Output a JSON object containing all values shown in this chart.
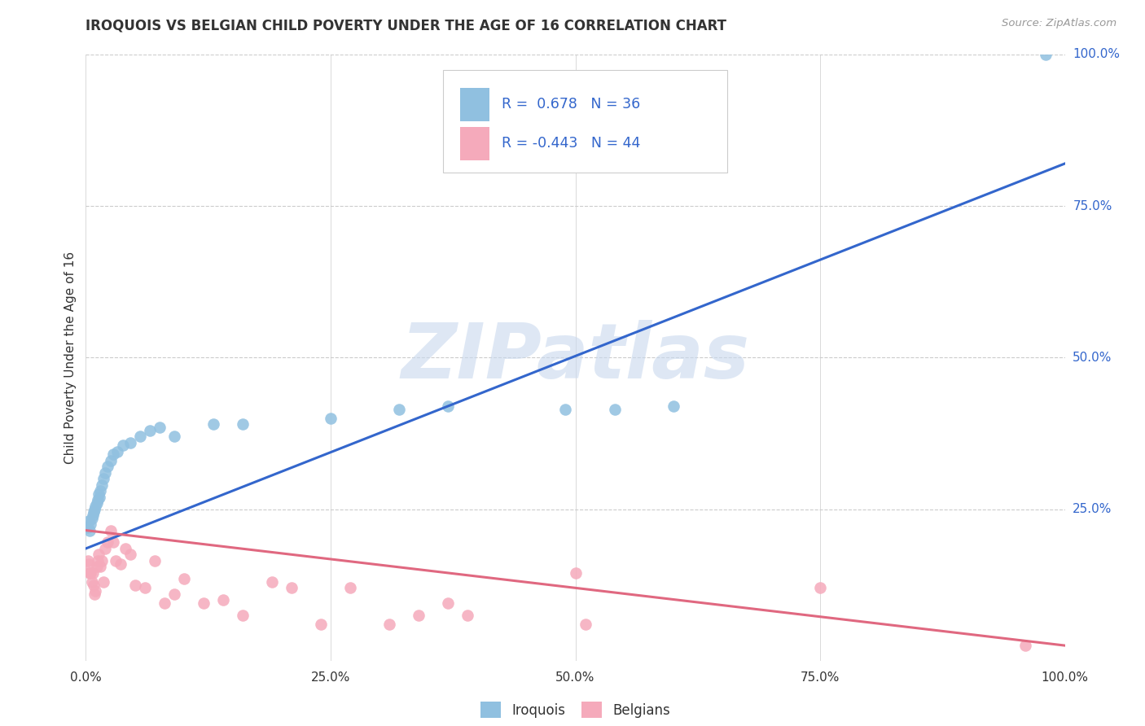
{
  "title": "IROQUOIS VS BELGIAN CHILD POVERTY UNDER THE AGE OF 16 CORRELATION CHART",
  "source": "Source: ZipAtlas.com",
  "ylabel": "Child Poverty Under the Age of 16",
  "xlim": [
    0.0,
    1.0
  ],
  "ylim": [
    0.0,
    1.0
  ],
  "xticks": [
    0.0,
    0.25,
    0.5,
    0.75,
    1.0
  ],
  "xticklabels": [
    "0.0%",
    "25.0%",
    "50.0%",
    "75.0%",
    "100.0%"
  ],
  "ytick_positions": [
    0.25,
    0.5,
    0.75,
    1.0
  ],
  "ytick_labels_right": [
    "25.0%",
    "50.0%",
    "75.0%",
    "100.0%"
  ],
  "watermark": "ZIPatlas",
  "legend_iroquois_label": "R =  0.678   N = 36",
  "legend_belgians_label": "R = -0.443   N = 44",
  "iroquois_color": "#90C0E0",
  "belgians_color": "#F5AABB",
  "iroquois_line_color": "#3366CC",
  "belgians_line_color": "#E06880",
  "background_color": "#FFFFFF",
  "iroquois_x": [
    0.002,
    0.003,
    0.004,
    0.005,
    0.006,
    0.007,
    0.008,
    0.009,
    0.01,
    0.011,
    0.012,
    0.013,
    0.014,
    0.015,
    0.016,
    0.018,
    0.02,
    0.022,
    0.025,
    0.028,
    0.032,
    0.038,
    0.045,
    0.055,
    0.065,
    0.075,
    0.09,
    0.13,
    0.16,
    0.25,
    0.32,
    0.37,
    0.49,
    0.54,
    0.6,
    0.98
  ],
  "iroquois_y": [
    0.22,
    0.23,
    0.215,
    0.225,
    0.235,
    0.24,
    0.245,
    0.25,
    0.255,
    0.26,
    0.265,
    0.275,
    0.27,
    0.28,
    0.29,
    0.3,
    0.31,
    0.32,
    0.33,
    0.34,
    0.345,
    0.355,
    0.36,
    0.37,
    0.38,
    0.385,
    0.37,
    0.39,
    0.39,
    0.4,
    0.415,
    0.42,
    0.415,
    0.415,
    0.42,
    1.0
  ],
  "belgians_x": [
    0.002,
    0.003,
    0.004,
    0.005,
    0.006,
    0.007,
    0.008,
    0.009,
    0.01,
    0.011,
    0.012,
    0.013,
    0.015,
    0.016,
    0.018,
    0.02,
    0.022,
    0.025,
    0.028,
    0.03,
    0.035,
    0.04,
    0.045,
    0.05,
    0.06,
    0.07,
    0.08,
    0.09,
    0.1,
    0.12,
    0.14,
    0.16,
    0.19,
    0.21,
    0.24,
    0.27,
    0.31,
    0.34,
    0.37,
    0.39,
    0.5,
    0.51,
    0.75,
    0.96
  ],
  "belgians_y": [
    0.165,
    0.16,
    0.145,
    0.145,
    0.13,
    0.145,
    0.125,
    0.11,
    0.115,
    0.155,
    0.165,
    0.175,
    0.155,
    0.165,
    0.13,
    0.185,
    0.195,
    0.215,
    0.195,
    0.165,
    0.16,
    0.185,
    0.175,
    0.125,
    0.12,
    0.165,
    0.095,
    0.11,
    0.135,
    0.095,
    0.1,
    0.075,
    0.13,
    0.12,
    0.06,
    0.12,
    0.06,
    0.075,
    0.095,
    0.075,
    0.145,
    0.06,
    0.12,
    0.025
  ],
  "iroquois_trend_x": [
    0.0,
    1.0
  ],
  "iroquois_trend_y": [
    0.185,
    0.82
  ],
  "belgians_trend_x": [
    0.0,
    1.0
  ],
  "belgians_trend_y": [
    0.215,
    0.025
  ]
}
